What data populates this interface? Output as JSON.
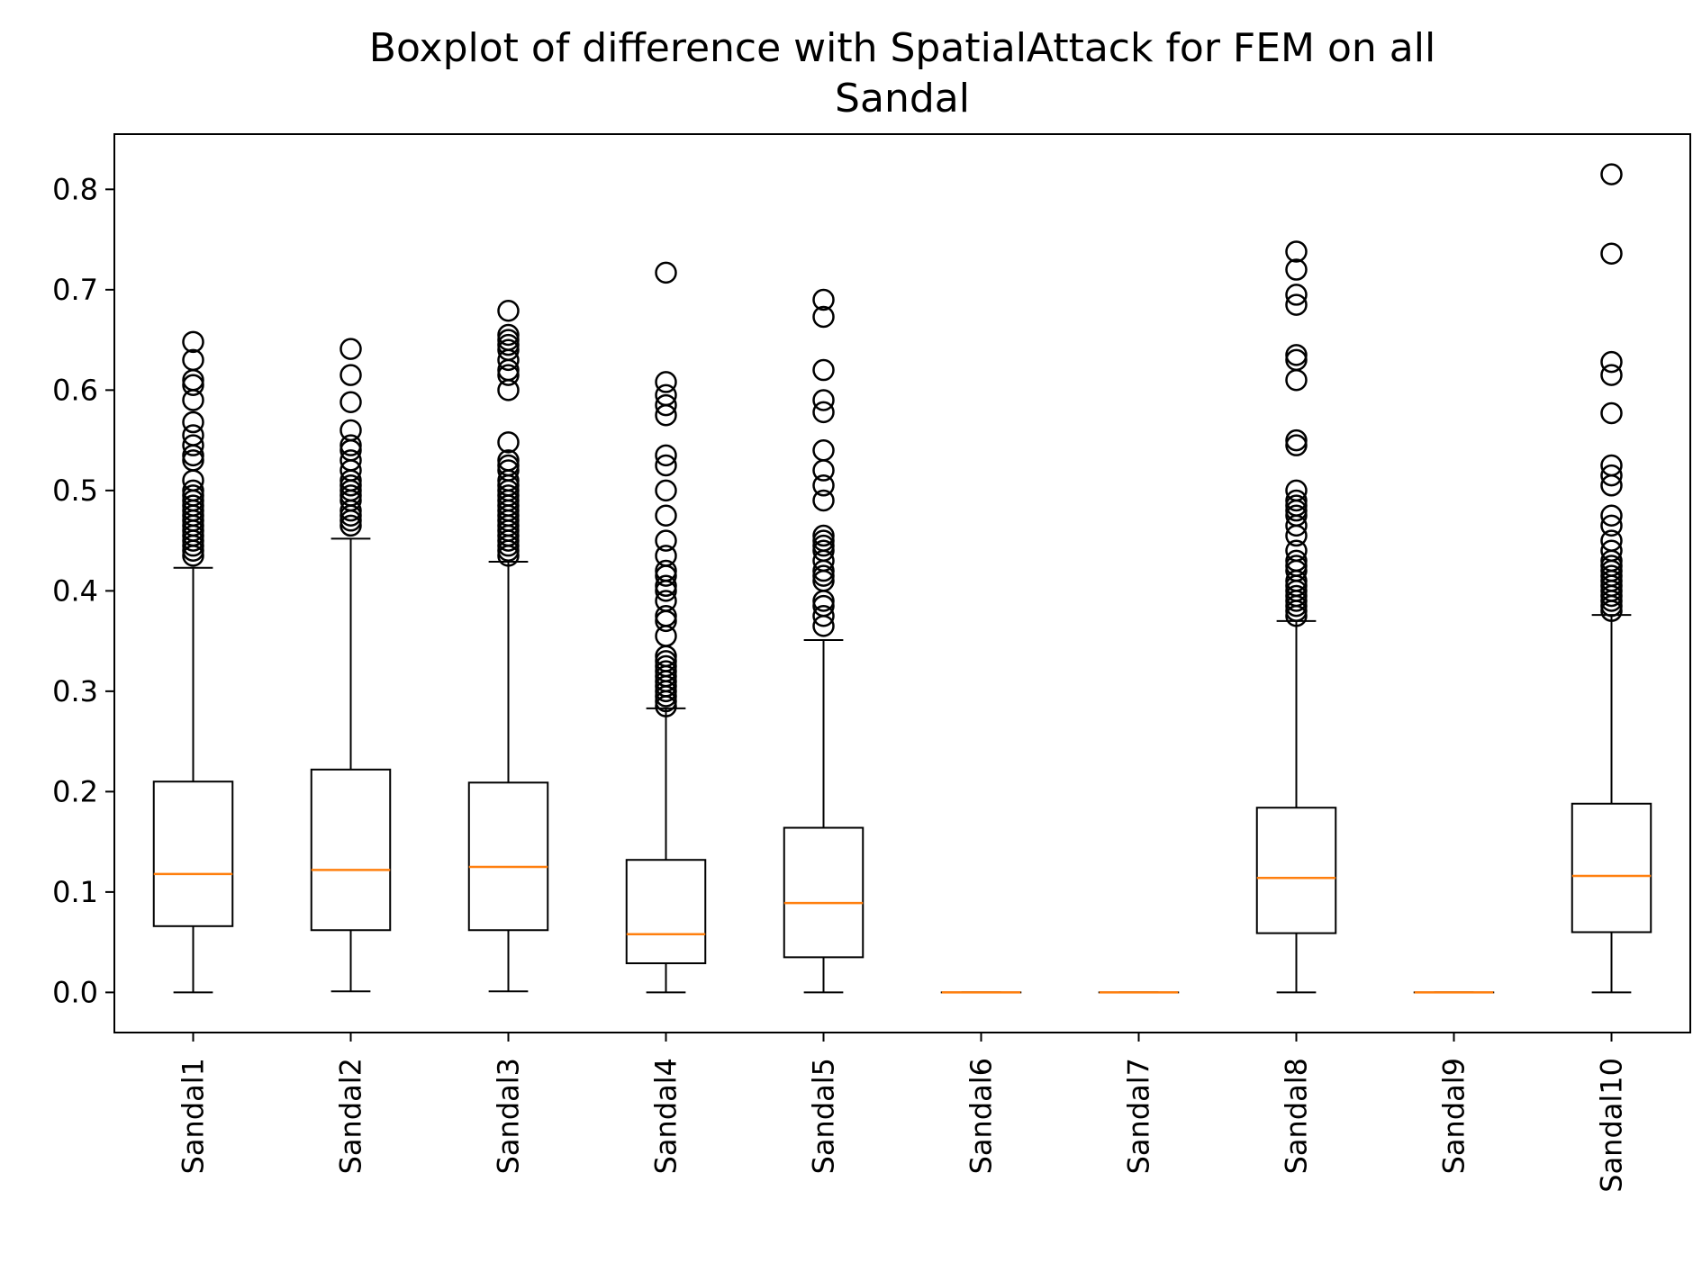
{
  "chart_data": {
    "type": "boxplot",
    "title_lines": [
      "Boxplot of difference with SpatialAttack for FEM on all",
      "Sandal"
    ],
    "xlabel": "",
    "ylabel": "",
    "ylim": [
      -0.04,
      0.855
    ],
    "yticks": [
      {
        "value": 0.0,
        "label": "0.0"
      },
      {
        "value": 0.1,
        "label": "0.1"
      },
      {
        "value": 0.2,
        "label": "0.2"
      },
      {
        "value": 0.3,
        "label": "0.3"
      },
      {
        "value": 0.4,
        "label": "0.4"
      },
      {
        "value": 0.5,
        "label": "0.5"
      },
      {
        "value": 0.6,
        "label": "0.6"
      },
      {
        "value": 0.7,
        "label": "0.7"
      },
      {
        "value": 0.8,
        "label": "0.8"
      }
    ],
    "grid": false,
    "box_color": "#000000",
    "median_color": "#ff7f0e",
    "boxes": [
      {
        "label": "Sandal1",
        "whisker_low": 0.0,
        "q1": 0.066,
        "median": 0.118,
        "q3": 0.21,
        "whisker_high": 0.423,
        "outliers": [
          0.435,
          0.44,
          0.445,
          0.45,
          0.455,
          0.46,
          0.465,
          0.47,
          0.475,
          0.48,
          0.485,
          0.49,
          0.495,
          0.5,
          0.51,
          0.53,
          0.535,
          0.545,
          0.555,
          0.568,
          0.59,
          0.605,
          0.61,
          0.63,
          0.648
        ]
      },
      {
        "label": "Sandal2",
        "whisker_low": 0.001,
        "q1": 0.062,
        "median": 0.122,
        "q3": 0.222,
        "whisker_high": 0.452,
        "outliers": [
          0.465,
          0.47,
          0.475,
          0.48,
          0.49,
          0.495,
          0.5,
          0.505,
          0.51,
          0.52,
          0.53,
          0.54,
          0.545,
          0.56,
          0.588,
          0.615,
          0.641
        ]
      },
      {
        "label": "Sandal3",
        "whisker_low": 0.001,
        "q1": 0.062,
        "median": 0.125,
        "q3": 0.209,
        "whisker_high": 0.429,
        "outliers": [
          0.435,
          0.44,
          0.445,
          0.45,
          0.455,
          0.46,
          0.465,
          0.47,
          0.475,
          0.48,
          0.485,
          0.49,
          0.495,
          0.5,
          0.505,
          0.51,
          0.52,
          0.525,
          0.53,
          0.548,
          0.6,
          0.615,
          0.62,
          0.63,
          0.64,
          0.645,
          0.65,
          0.655,
          0.679
        ]
      },
      {
        "label": "Sandal4",
        "whisker_low": 0.0,
        "q1": 0.029,
        "median": 0.058,
        "q3": 0.132,
        "whisker_high": 0.283,
        "outliers": [
          0.285,
          0.29,
          0.295,
          0.3,
          0.305,
          0.31,
          0.315,
          0.32,
          0.325,
          0.33,
          0.335,
          0.355,
          0.37,
          0.375,
          0.39,
          0.4,
          0.405,
          0.415,
          0.42,
          0.435,
          0.45,
          0.475,
          0.5,
          0.525,
          0.535,
          0.575,
          0.585,
          0.595,
          0.608,
          0.717
        ]
      },
      {
        "label": "Sandal5",
        "whisker_low": 0.0,
        "q1": 0.035,
        "median": 0.089,
        "q3": 0.164,
        "whisker_high": 0.351,
        "outliers": [
          0.365,
          0.375,
          0.385,
          0.39,
          0.41,
          0.415,
          0.42,
          0.43,
          0.44,
          0.445,
          0.45,
          0.455,
          0.49,
          0.505,
          0.52,
          0.54,
          0.578,
          0.59,
          0.62,
          0.673,
          0.69
        ]
      },
      {
        "label": "Sandal6",
        "whisker_low": 0.0,
        "q1": 0.0,
        "median": 0.0,
        "q3": 0.0,
        "whisker_high": 0.0,
        "outliers": []
      },
      {
        "label": "Sandal7",
        "whisker_low": 0.0,
        "q1": 0.0,
        "median": 0.0,
        "q3": 0.0,
        "whisker_high": 0.0,
        "outliers": []
      },
      {
        "label": "Sandal8",
        "whisker_low": 0.0,
        "q1": 0.059,
        "median": 0.114,
        "q3": 0.184,
        "whisker_high": 0.37,
        "outliers": [
          0.375,
          0.38,
          0.385,
          0.39,
          0.395,
          0.4,
          0.405,
          0.41,
          0.42,
          0.425,
          0.43,
          0.44,
          0.455,
          0.465,
          0.475,
          0.48,
          0.485,
          0.49,
          0.5,
          0.545,
          0.55,
          0.61,
          0.63,
          0.635,
          0.685,
          0.695,
          0.72,
          0.738
        ]
      },
      {
        "label": "Sandal9",
        "whisker_low": 0.0,
        "q1": 0.0,
        "median": 0.0,
        "q3": 0.0,
        "whisker_high": 0.0,
        "outliers": []
      },
      {
        "label": "Sandal10",
        "whisker_low": 0.0,
        "q1": 0.06,
        "median": 0.116,
        "q3": 0.188,
        "whisker_high": 0.376,
        "outliers": [
          0.38,
          0.385,
          0.39,
          0.395,
          0.4,
          0.405,
          0.41,
          0.415,
          0.42,
          0.425,
          0.43,
          0.44,
          0.45,
          0.465,
          0.475,
          0.505,
          0.515,
          0.525,
          0.577,
          0.615,
          0.628,
          0.736,
          0.815
        ]
      }
    ]
  }
}
